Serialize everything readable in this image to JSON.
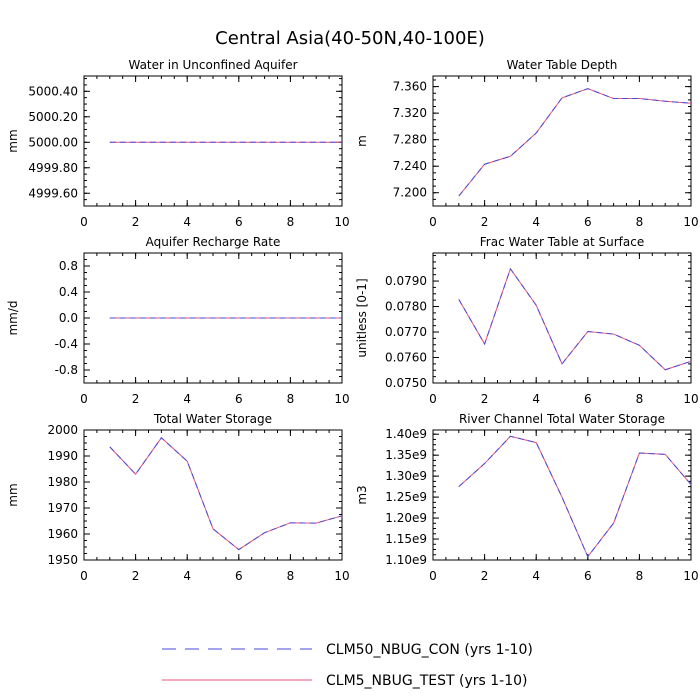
{
  "figure": {
    "title": "Central Asia(40-50N,40-100E)"
  },
  "legend": {
    "entries": [
      {
        "label": "CLM50_NBUG_CON (yrs 1-10)",
        "color": "#4a4adc",
        "style": "dashed"
      },
      {
        "label": "CLM5_NBUG_TEST (yrs 1-10)",
        "color": "#e8547a",
        "style": "solid"
      }
    ]
  },
  "chart_data": [
    {
      "type": "line",
      "title": "Water in Unconfined Aquifer",
      "xlabel": "",
      "ylabel": "mm",
      "xlim": [
        0,
        10
      ],
      "ylim": [
        4999.5,
        5000.52
      ],
      "xticks": [
        0,
        2,
        4,
        6,
        8,
        10
      ],
      "xtick_labels": [
        "0",
        "2",
        "4",
        "6",
        "8",
        "10"
      ],
      "yticks": [
        4999.6,
        4999.8,
        5000.0,
        5000.2,
        5000.4
      ],
      "ytick_labels": [
        "4999.60",
        "4999.80",
        "5000.00",
        "5000.20",
        "5000.40"
      ],
      "x": [
        1,
        2,
        3,
        4,
        5,
        6,
        7,
        8,
        9,
        10
      ],
      "series": [
        {
          "name": "CLM50_NBUG_CON (yrs 1-10)",
          "values": [
            5000,
            5000,
            5000,
            5000,
            5000,
            5000,
            5000,
            5000,
            5000,
            5000
          ]
        },
        {
          "name": "CLM5_NBUG_TEST (yrs 1-10)",
          "values": [
            5000,
            5000,
            5000,
            5000,
            5000,
            5000,
            5000,
            5000,
            5000,
            5000
          ]
        }
      ]
    },
    {
      "type": "line",
      "title": "Water Table Depth",
      "xlabel": "",
      "ylabel": "m",
      "xlim": [
        0,
        10
      ],
      "ylim": [
        7.18,
        7.376
      ],
      "xticks": [
        0,
        2,
        4,
        6,
        8,
        10
      ],
      "xtick_labels": [
        "0",
        "2",
        "4",
        "6",
        "8",
        "10"
      ],
      "yticks": [
        7.2,
        7.24,
        7.28,
        7.32,
        7.36
      ],
      "ytick_labels": [
        "7.200",
        "7.240",
        "7.280",
        "7.320",
        "7.360"
      ],
      "x": [
        1,
        2,
        3,
        4,
        5,
        6,
        7,
        8,
        9,
        10
      ],
      "series": [
        {
          "name": "CLM50_NBUG_CON (yrs 1-10)",
          "values": [
            7.195,
            7.243,
            7.255,
            7.29,
            7.343,
            7.357,
            7.342,
            7.342,
            7.338,
            7.335
          ]
        },
        {
          "name": "CLM5_NBUG_TEST (yrs 1-10)",
          "values": [
            7.195,
            7.243,
            7.255,
            7.29,
            7.343,
            7.357,
            7.342,
            7.342,
            7.338,
            7.335
          ]
        }
      ]
    },
    {
      "type": "line",
      "title": "Aquifer Recharge Rate",
      "xlabel": "",
      "ylabel": "mm/d",
      "xlim": [
        0,
        10
      ],
      "ylim": [
        -1,
        1
      ],
      "xticks": [
        0,
        2,
        4,
        6,
        8,
        10
      ],
      "xtick_labels": [
        "0",
        "2",
        "4",
        "6",
        "8",
        "10"
      ],
      "yticks": [
        -0.8,
        -0.4,
        0.0,
        0.4,
        0.8
      ],
      "ytick_labels": [
        "-0.8",
        "-0.4",
        "0.0",
        "0.4",
        "0.8"
      ],
      "x": [
        1,
        2,
        3,
        4,
        5,
        6,
        7,
        8,
        9,
        10
      ],
      "series": [
        {
          "name": "CLM50_NBUG_CON (yrs 1-10)",
          "values": [
            0,
            0,
            0,
            0,
            0,
            0,
            0,
            0,
            0,
            0
          ]
        },
        {
          "name": "CLM5_NBUG_TEST (yrs 1-10)",
          "values": [
            0,
            0,
            0,
            0,
            0,
            0,
            0,
            0,
            0,
            0
          ]
        }
      ]
    },
    {
      "type": "line",
      "title": "Frac Water Table at Surface",
      "xlabel": "",
      "ylabel": "unitless [0-1]",
      "xlim": [
        0,
        10
      ],
      "ylim": [
        0.075,
        0.0801
      ],
      "xticks": [
        0,
        2,
        4,
        6,
        8,
        10
      ],
      "xtick_labels": [
        "0",
        "2",
        "4",
        "6",
        "8",
        "10"
      ],
      "yticks": [
        0.075,
        0.076,
        0.077,
        0.078,
        0.079
      ],
      "ytick_labels": [
        "0.0750",
        "0.0760",
        "0.0770",
        "0.0780",
        "0.0790"
      ],
      "x": [
        1,
        2,
        3,
        4,
        5,
        6,
        7,
        8,
        9,
        10
      ],
      "series": [
        {
          "name": "CLM50_NBUG_CON (yrs 1-10)",
          "values": [
            0.07828,
            0.07653,
            0.07948,
            0.07805,
            0.07575,
            0.07702,
            0.07692,
            0.07648,
            0.07552,
            0.07585
          ]
        },
        {
          "name": "CLM5_NBUG_TEST (yrs 1-10)",
          "values": [
            0.07828,
            0.07653,
            0.07948,
            0.07805,
            0.07575,
            0.07702,
            0.07692,
            0.07648,
            0.07552,
            0.07585
          ]
        }
      ]
    },
    {
      "type": "line",
      "title": "Total Water Storage",
      "xlabel": "",
      "ylabel": "mm",
      "xlim": [
        0,
        10
      ],
      "ylim": [
        1950,
        2000
      ],
      "xticks": [
        0,
        2,
        4,
        6,
        8,
        10
      ],
      "xtick_labels": [
        "0",
        "2",
        "4",
        "6",
        "8",
        "10"
      ],
      "yticks": [
        1950,
        1960,
        1970,
        1980,
        1990,
        2000
      ],
      "ytick_labels": [
        "1950",
        "1960",
        "1970",
        "1980",
        "1990",
        "2000"
      ],
      "x": [
        1,
        2,
        3,
        4,
        5,
        6,
        7,
        8,
        9,
        10
      ],
      "series": [
        {
          "name": "CLM50_NBUG_CON (yrs 1-10)",
          "values": [
            1993.5,
            1983,
            1997,
            1988,
            1962,
            1954,
            1960.5,
            1964.3,
            1964.2,
            1967
          ]
        },
        {
          "name": "CLM5_NBUG_TEST (yrs 1-10)",
          "values": [
            1993.5,
            1983,
            1997,
            1988,
            1962,
            1954,
            1960.5,
            1964.3,
            1964.2,
            1967
          ]
        }
      ]
    },
    {
      "type": "line",
      "title": "River Channel Total Water Storage",
      "xlabel": "",
      "ylabel": "m3",
      "xlim": [
        0,
        10
      ],
      "ylim": [
        1100000000.0,
        1410000000.0
      ],
      "xticks": [
        0,
        2,
        4,
        6,
        8,
        10
      ],
      "xtick_labels": [
        "0",
        "2",
        "4",
        "6",
        "8",
        "10"
      ],
      "yticks": [
        1100000000.0,
        1150000000.0,
        1200000000.0,
        1250000000.0,
        1300000000.0,
        1350000000.0,
        1400000000.0
      ],
      "ytick_labels": [
        "1.10e9",
        "1.15e9",
        "1.20e9",
        "1.25e9",
        "1.30e9",
        "1.35e9",
        "1.40e9"
      ],
      "x": [
        1,
        2,
        3,
        4,
        5,
        6,
        7,
        8,
        9,
        10
      ],
      "series": [
        {
          "name": "CLM50_NBUG_CON (yrs 1-10)",
          "values": [
            1275000000.0,
            1330000000.0,
            1395000000.0,
            1380000000.0,
            1250000000.0,
            1108000000.0,
            1188000000.0,
            1355000000.0,
            1352000000.0,
            1280000000.0
          ]
        },
        {
          "name": "CLM5_NBUG_TEST (yrs 1-10)",
          "values": [
            1275000000.0,
            1330000000.0,
            1395000000.0,
            1380000000.0,
            1250000000.0,
            1108000000.0,
            1188000000.0,
            1355000000.0,
            1352000000.0,
            1280000000.0
          ]
        }
      ]
    }
  ]
}
